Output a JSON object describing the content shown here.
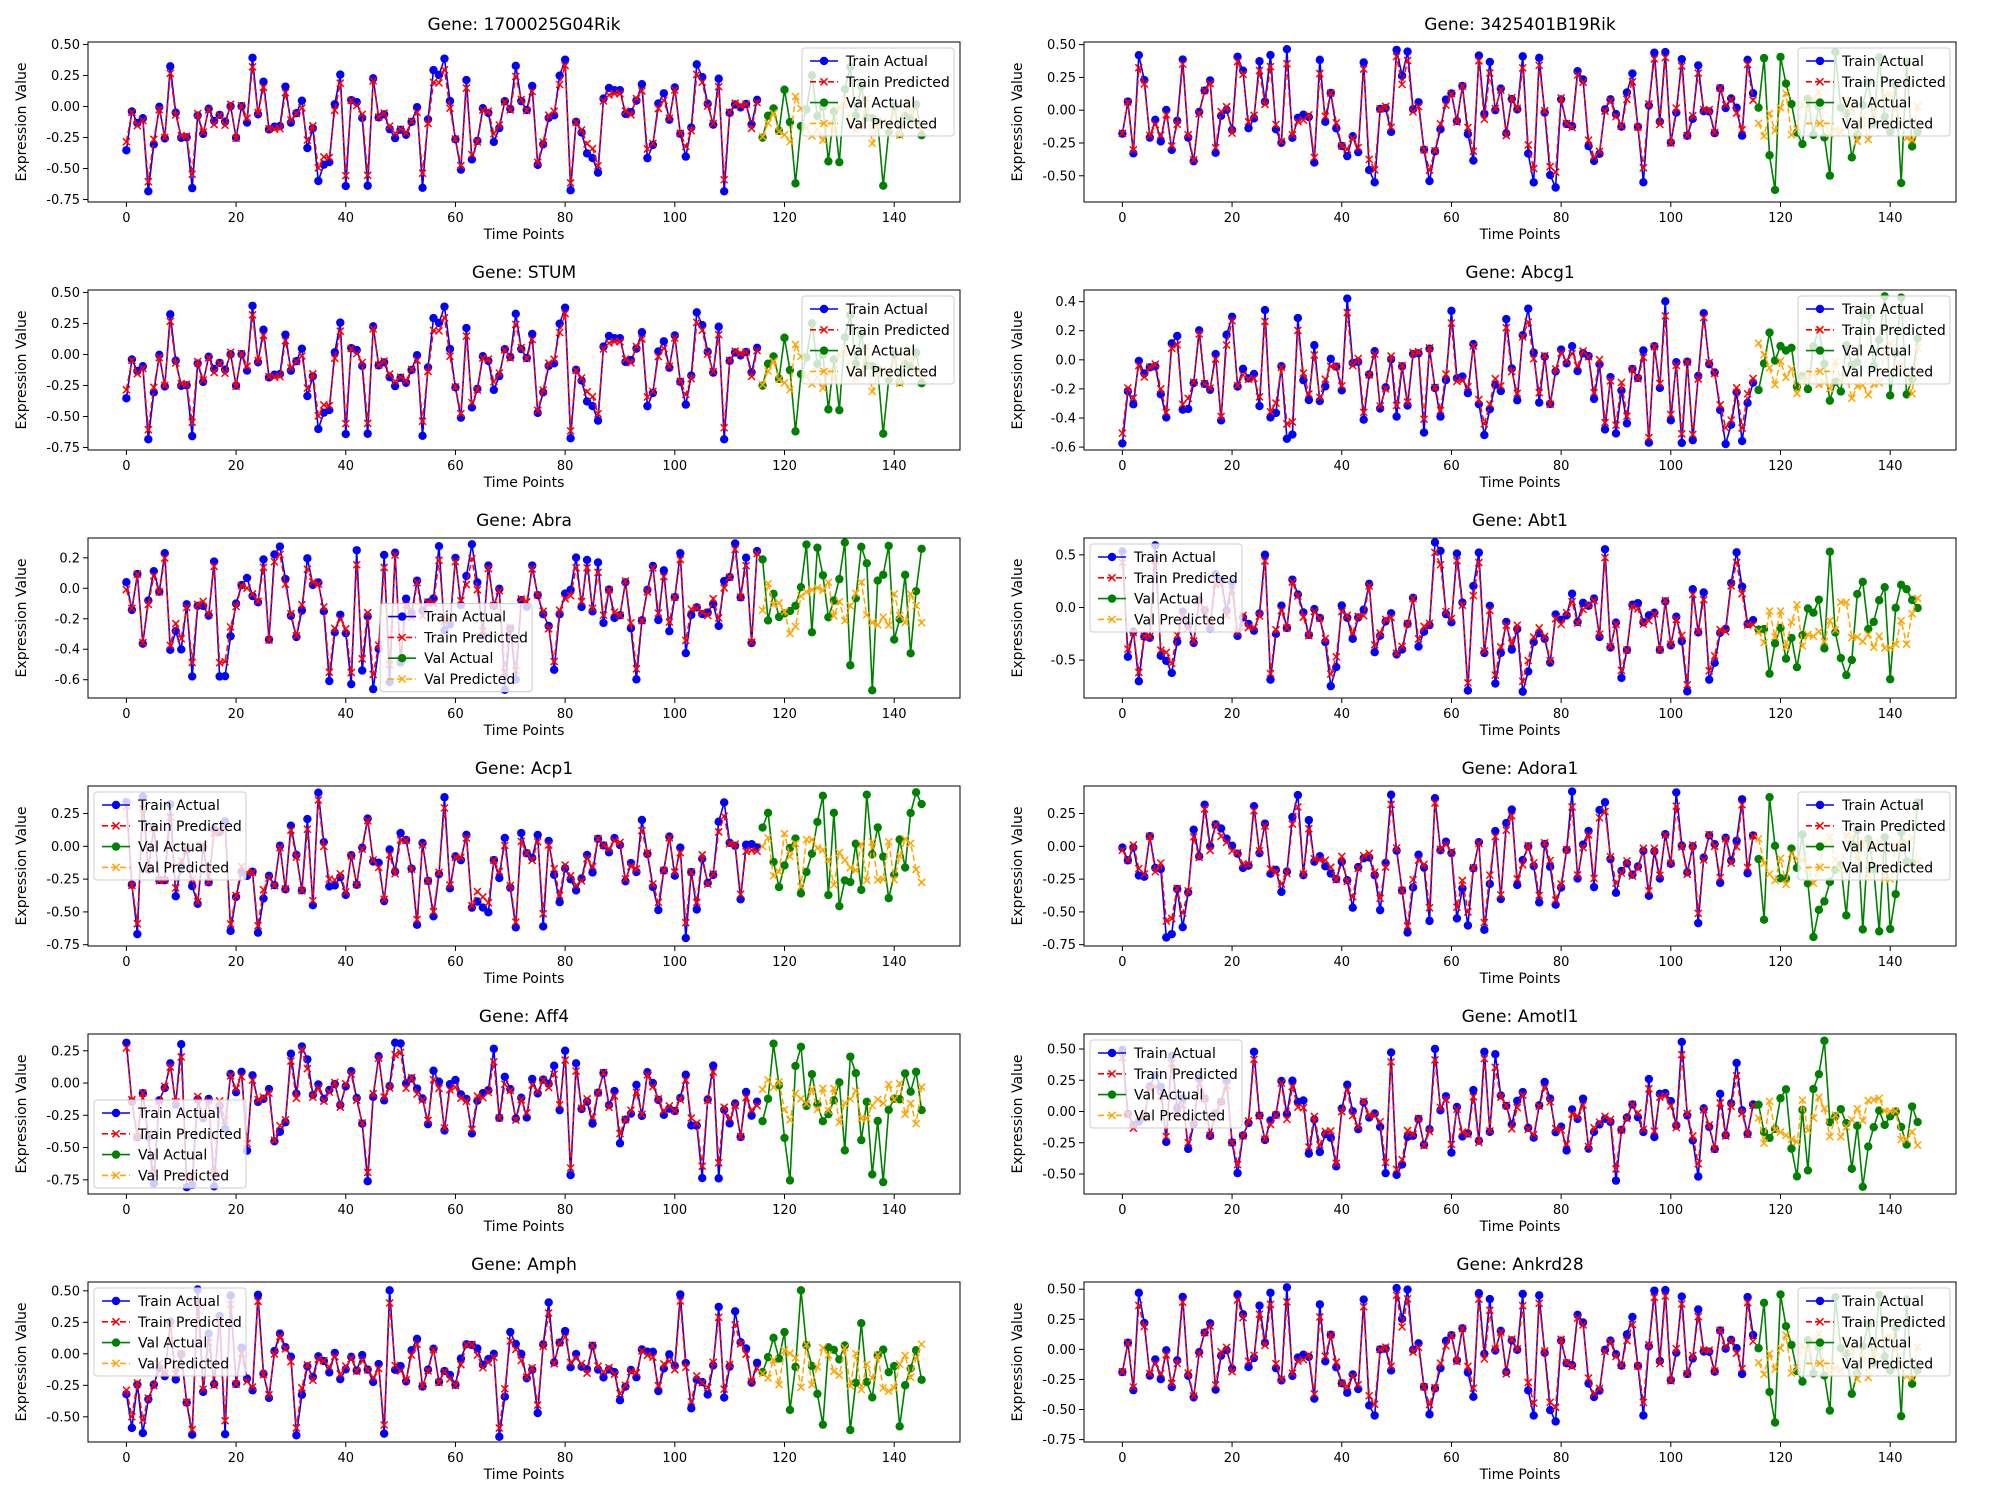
{
  "figure": {
    "colors": {
      "train_actual": "#0000ff",
      "train_predicted": "#ff0000",
      "val_actual": "#008000",
      "val_predicted": "#ffa500"
    },
    "legend_labels": [
      "Train Actual",
      "Train Predicted",
      "Val Actual",
      "Val Predicted"
    ]
  },
  "chart_data": [
    {
      "type": "line",
      "title": "Gene: 1700025G04Rik",
      "xlabel": "Time Points",
      "ylabel": "Expression Value",
      "xlim": [
        -7,
        152
      ],
      "ylim": [
        -0.77,
        0.52
      ],
      "yticks": [
        -0.75,
        -0.5,
        -0.25,
        0.0,
        0.25,
        0.5
      ],
      "xticks": [
        0,
        20,
        40,
        60,
        80,
        100,
        120,
        140
      ],
      "legend_loc": "upper right",
      "split": 116,
      "n": 146,
      "seed": 11,
      "amp": 0.2,
      "mean": -0.1,
      "lo": -0.72,
      "hi": 0.4,
      "series": [
        {
          "name": "Train Actual"
        },
        {
          "name": "Train Predicted"
        },
        {
          "name": "Val Actual"
        },
        {
          "name": "Val Predicted"
        }
      ]
    },
    {
      "type": "line",
      "title": "Gene: 3425401B19Rik",
      "xlabel": "Time Points",
      "ylabel": "Expression Value",
      "xlim": [
        -7,
        152
      ],
      "ylim": [
        -0.7,
        0.52
      ],
      "yticks": [
        -0.5,
        -0.25,
        0.0,
        0.25,
        0.5
      ],
      "xticks": [
        0,
        20,
        40,
        60,
        80,
        100,
        120,
        140
      ],
      "legend_loc": "upper right",
      "split": 116,
      "n": 146,
      "seed": 23,
      "amp": 0.2,
      "mean": -0.05,
      "lo": -0.66,
      "hi": 0.47,
      "series": [
        {
          "name": "Train Actual"
        },
        {
          "name": "Train Predicted"
        },
        {
          "name": "Val Actual"
        },
        {
          "name": "Val Predicted"
        }
      ]
    },
    {
      "type": "line",
      "title": "Gene: STUM",
      "xlabel": "Time Points",
      "ylabel": "Expression Value",
      "xlim": [
        -7,
        152
      ],
      "ylim": [
        -0.77,
        0.52
      ],
      "yticks": [
        -0.75,
        -0.5,
        -0.25,
        0.0,
        0.25,
        0.5
      ],
      "xticks": [
        0,
        20,
        40,
        60,
        80,
        100,
        120,
        140
      ],
      "legend_loc": "upper right",
      "split": 116,
      "n": 146,
      "seed": 11,
      "amp": 0.2,
      "mean": -0.1,
      "lo": -0.72,
      "hi": 0.4,
      "series": [
        {
          "name": "Train Actual"
        },
        {
          "name": "Train Predicted"
        },
        {
          "name": "Val Actual"
        },
        {
          "name": "Val Predicted"
        }
      ]
    },
    {
      "type": "line",
      "title": "Gene: Abcg1",
      "xlabel": "Time Points",
      "ylabel": "Expression Value",
      "xlim": [
        -7,
        152
      ],
      "ylim": [
        -0.62,
        0.48
      ],
      "yticks": [
        -0.6,
        -0.4,
        -0.2,
        0.0,
        0.2,
        0.4
      ],
      "xticks": [
        0,
        20,
        40,
        60,
        80,
        100,
        120,
        140
      ],
      "legend_loc": "upper right",
      "split": 116,
      "n": 146,
      "seed": 37,
      "amp": 0.2,
      "mean": -0.08,
      "lo": -0.58,
      "hi": 0.45,
      "series": [
        {
          "name": "Train Actual"
        },
        {
          "name": "Train Predicted"
        },
        {
          "name": "Val Actual"
        },
        {
          "name": "Val Predicted"
        }
      ]
    },
    {
      "type": "line",
      "title": "Gene: Abra",
      "xlabel": "Time Points",
      "ylabel": "Expression Value",
      "xlim": [
        -7,
        152
      ],
      "ylim": [
        -0.72,
        0.33
      ],
      "yticks": [
        -0.6,
        -0.4,
        -0.2,
        0.0,
        0.2
      ],
      "xticks": [
        0,
        20,
        40,
        60,
        80,
        100,
        120,
        140
      ],
      "legend_loc": "center",
      "split": 116,
      "n": 146,
      "seed": 51,
      "amp": 0.2,
      "mean": -0.12,
      "lo": -0.68,
      "hi": 0.3,
      "series": [
        {
          "name": "Train Actual"
        },
        {
          "name": "Train Predicted"
        },
        {
          "name": "Val Actual"
        },
        {
          "name": "Val Predicted"
        }
      ]
    },
    {
      "type": "line",
      "title": "Gene: Abt1",
      "xlabel": "Time Points",
      "ylabel": "Expression Value",
      "xlim": [
        -7,
        152
      ],
      "ylim": [
        -0.86,
        0.66
      ],
      "yticks": [
        -0.5,
        0.0,
        0.5
      ],
      "xticks": [
        0,
        20,
        40,
        60,
        80,
        100,
        120,
        140
      ],
      "legend_loc": "upper left",
      "split": 116,
      "n": 146,
      "seed": 67,
      "amp": 0.24,
      "mean": -0.15,
      "lo": -0.8,
      "hi": 0.62,
      "series": [
        {
          "name": "Train Actual"
        },
        {
          "name": "Train Predicted"
        },
        {
          "name": "Val Actual"
        },
        {
          "name": "Val Predicted"
        }
      ]
    },
    {
      "type": "line",
      "title": "Gene: Acp1",
      "xlabel": "Time Points",
      "ylabel": "Expression Value",
      "xlim": [
        -7,
        152
      ],
      "ylim": [
        -0.76,
        0.46
      ],
      "yticks": [
        -0.75,
        -0.5,
        -0.25,
        0.0,
        0.25
      ],
      "xticks": [
        0,
        20,
        40,
        60,
        80,
        100,
        120,
        140
      ],
      "legend_loc": "upper left",
      "split": 116,
      "n": 146,
      "seed": 79,
      "amp": 0.22,
      "mean": -0.12,
      "lo": -0.71,
      "hi": 0.42,
      "series": [
        {
          "name": "Train Actual"
        },
        {
          "name": "Train Predicted"
        },
        {
          "name": "Val Actual"
        },
        {
          "name": "Val Predicted"
        }
      ]
    },
    {
      "type": "line",
      "title": "Gene: Adora1",
      "xlabel": "Time Points",
      "ylabel": "Expression Value",
      "xlim": [
        -7,
        152
      ],
      "ylim": [
        -0.76,
        0.46
      ],
      "yticks": [
        -0.75,
        -0.5,
        -0.25,
        0.0,
        0.25
      ],
      "xticks": [
        0,
        20,
        40,
        60,
        80,
        100,
        120,
        140
      ],
      "legend_loc": "upper right",
      "split": 116,
      "n": 146,
      "seed": 83,
      "amp": 0.2,
      "mean": -0.1,
      "lo": -0.72,
      "hi": 0.42,
      "series": [
        {
          "name": "Train Actual"
        },
        {
          "name": "Train Predicted"
        },
        {
          "name": "Val Actual"
        },
        {
          "name": "Val Predicted"
        }
      ]
    },
    {
      "type": "line",
      "title": "Gene: Aff4",
      "xlabel": "Time Points",
      "ylabel": "Expression Value",
      "xlim": [
        -7,
        152
      ],
      "ylim": [
        -0.86,
        0.38
      ],
      "yticks": [
        -0.75,
        -0.5,
        -0.25,
        0.0,
        0.25
      ],
      "xticks": [
        0,
        20,
        40,
        60,
        80,
        100,
        120,
        140
      ],
      "legend_loc": "lower left",
      "split": 116,
      "n": 146,
      "seed": 97,
      "amp": 0.18,
      "mean": -0.15,
      "lo": -0.82,
      "hi": 0.33,
      "series": [
        {
          "name": "Train Actual"
        },
        {
          "name": "Train Predicted"
        },
        {
          "name": "Val Actual"
        },
        {
          "name": "Val Predicted"
        }
      ]
    },
    {
      "type": "line",
      "title": "Gene: Amotl1",
      "xlabel": "Time Points",
      "ylabel": "Expression Value",
      "xlim": [
        -7,
        152
      ],
      "ylim": [
        -0.66,
        0.62
      ],
      "yticks": [
        -0.5,
        -0.25,
        0.0,
        0.25,
        0.5
      ],
      "xticks": [
        0,
        20,
        40,
        60,
        80,
        100,
        120,
        140
      ],
      "legend_loc": "upper left",
      "split": 116,
      "n": 146,
      "seed": 103,
      "amp": 0.2,
      "mean": -0.08,
      "lo": -0.61,
      "hi": 0.57,
      "series": [
        {
          "name": "Train Actual"
        },
        {
          "name": "Train Predicted"
        },
        {
          "name": "Val Actual"
        },
        {
          "name": "Val Predicted"
        }
      ]
    },
    {
      "type": "line",
      "title": "Gene: Amph",
      "xlabel": "Time Points",
      "ylabel": "Expression Value",
      "xlim": [
        -7,
        152
      ],
      "ylim": [
        -0.7,
        0.57
      ],
      "yticks": [
        -0.5,
        -0.25,
        0.0,
        0.25,
        0.5
      ],
      "xticks": [
        0,
        20,
        40,
        60,
        80,
        100,
        120,
        140
      ],
      "legend_loc": "upper left",
      "split": 116,
      "n": 146,
      "seed": 113,
      "amp": 0.2,
      "mean": -0.12,
      "lo": -0.66,
      "hi": 0.52,
      "series": [
        {
          "name": "Train Actual"
        },
        {
          "name": "Train Predicted"
        },
        {
          "name": "Val Actual"
        },
        {
          "name": "Val Predicted"
        }
      ]
    },
    {
      "type": "line",
      "title": "Gene: Ankrd28",
      "xlabel": "Time Points",
      "ylabel": "Expression Value",
      "xlim": [
        -7,
        152
      ],
      "ylim": [
        -0.77,
        0.56
      ],
      "yticks": [
        -0.75,
        -0.5,
        -0.25,
        0.0,
        0.25,
        0.5
      ],
      "xticks": [
        0,
        20,
        40,
        60,
        80,
        100,
        120,
        140
      ],
      "legend_loc": "upper right",
      "split": 116,
      "n": 146,
      "seed": 23,
      "amp": 0.2,
      "mean": -0.06,
      "lo": -0.66,
      "hi": 0.52,
      "series": [
        {
          "name": "Train Actual"
        },
        {
          "name": "Train Predicted"
        },
        {
          "name": "Val Actual"
        },
        {
          "name": "Val Predicted"
        }
      ]
    }
  ]
}
